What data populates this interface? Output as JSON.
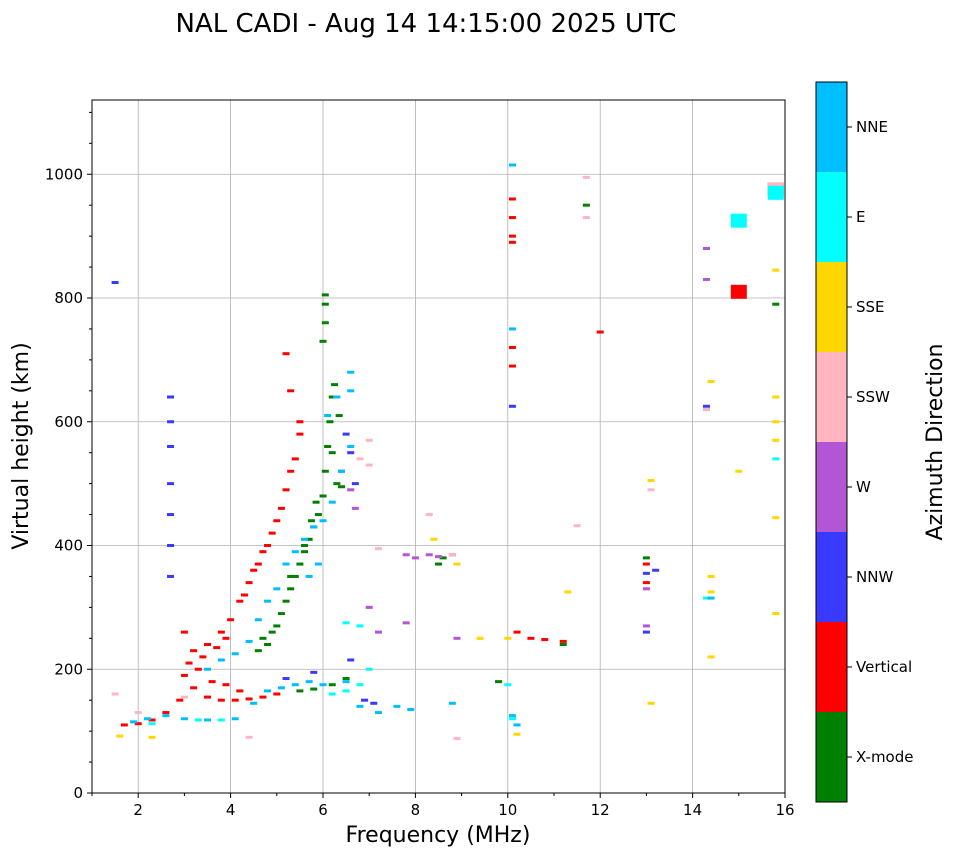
{
  "chart_data": {
    "type": "scatter",
    "title": "NAL CADI - Aug 14 14:15:00 2025 UTC",
    "xlabel": "Frequency (MHz)",
    "ylabel": "Virtual height (km)",
    "xlim": [
      1,
      16
    ],
    "ylim": [
      0,
      1120
    ],
    "xticks": [
      2,
      4,
      6,
      8,
      10,
      12,
      14,
      16
    ],
    "xtick_labels": [
      "2",
      "4",
      "6",
      "8",
      "10",
      "12",
      "14",
      "16"
    ],
    "yticks": [
      0,
      200,
      400,
      600,
      800,
      1000
    ],
    "ytick_labels": [
      "0",
      "200",
      "400",
      "600",
      "800",
      "1000"
    ],
    "grid": true,
    "colorbar": {
      "title": "Azimuth Direction",
      "categories": [
        "X-mode",
        "Vertical",
        "NNW",
        "W",
        "SSW",
        "SSE",
        "E",
        "NNE"
      ],
      "colors": [
        "#008000",
        "#ff0000",
        "#3a3aff",
        "#b256d6",
        "#ffb6c1",
        "#ffd700",
        "#00ffff",
        "#00bfff"
      ]
    },
    "series": [
      {
        "name": "X-mode",
        "points": [
          [
            5.0,
            270
          ],
          [
            5.1,
            290
          ],
          [
            5.2,
            310
          ],
          [
            5.3,
            330
          ],
          [
            5.4,
            350
          ],
          [
            5.5,
            370
          ],
          [
            5.6,
            390
          ],
          [
            5.7,
            410
          ],
          [
            5.8,
            430
          ],
          [
            5.9,
            450
          ],
          [
            6.0,
            480
          ],
          [
            6.05,
            520
          ],
          [
            6.1,
            560
          ],
          [
            6.15,
            600
          ],
          [
            6.2,
            640
          ],
          [
            6.25,
            660
          ],
          [
            6.0,
            730
          ],
          [
            6.05,
            760
          ],
          [
            6.05,
            790
          ],
          [
            6.05,
            805
          ],
          [
            4.9,
            260
          ],
          [
            4.8,
            240
          ],
          [
            5.5,
            165
          ],
          [
            5.8,
            168
          ],
          [
            6.2,
            175
          ],
          [
            6.5,
            185
          ],
          [
            11.2,
            240
          ],
          [
            11.7,
            950
          ],
          [
            13.0,
            380
          ],
          [
            15.8,
            790
          ],
          [
            4.6,
            230
          ],
          [
            4.7,
            250
          ],
          [
            5.3,
            350
          ],
          [
            5.6,
            400
          ],
          [
            5.75,
            440
          ],
          [
            5.85,
            470
          ],
          [
            6.3,
            500
          ],
          [
            6.4,
            495
          ],
          [
            8.5,
            370
          ],
          [
            8.6,
            380
          ],
          [
            9.8,
            180
          ],
          [
            6.2,
            550
          ],
          [
            6.35,
            610
          ]
        ]
      },
      {
        "name": "Vertical",
        "points": [
          [
            1.7,
            110
          ],
          [
            2.0,
            112
          ],
          [
            2.3,
            118
          ],
          [
            2.6,
            130
          ],
          [
            2.9,
            150
          ],
          [
            3.2,
            170
          ],
          [
            3.5,
            155
          ],
          [
            3.8,
            150
          ],
          [
            4.1,
            150
          ],
          [
            4.4,
            152
          ],
          [
            4.7,
            155
          ],
          [
            5.0,
            160
          ],
          [
            3.0,
            260
          ],
          [
            3.2,
            230
          ],
          [
            3.5,
            240
          ],
          [
            3.8,
            260
          ],
          [
            4.0,
            280
          ],
          [
            4.2,
            310
          ],
          [
            4.4,
            340
          ],
          [
            4.6,
            370
          ],
          [
            4.8,
            400
          ],
          [
            5.0,
            440
          ],
          [
            5.2,
            490
          ],
          [
            5.4,
            540
          ],
          [
            5.5,
            600
          ],
          [
            5.3,
            650
          ],
          [
            5.2,
            710
          ],
          [
            4.3,
            320
          ],
          [
            4.5,
            360
          ],
          [
            4.7,
            390
          ],
          [
            4.9,
            420
          ],
          [
            5.1,
            460
          ],
          [
            5.3,
            520
          ],
          [
            5.5,
            580
          ],
          [
            3.1,
            210
          ],
          [
            3.4,
            220
          ],
          [
            3.7,
            235
          ],
          [
            3.9,
            250
          ],
          [
            10.1,
            960
          ],
          [
            10.1,
            930
          ],
          [
            10.1,
            900
          ],
          [
            10.1,
            890
          ],
          [
            10.1,
            720
          ],
          [
            10.1,
            690
          ],
          [
            10.2,
            260
          ],
          [
            10.5,
            250
          ],
          [
            10.8,
            248
          ],
          [
            11.2,
            245
          ],
          [
            12.0,
            745
          ],
          [
            13.0,
            340
          ],
          [
            13.0,
            370
          ],
          [
            15.0,
            810
          ],
          [
            3.0,
            190
          ],
          [
            3.3,
            200
          ],
          [
            3.6,
            180
          ],
          [
            3.9,
            175
          ],
          [
            4.2,
            165
          ],
          [
            15.8,
            975
          ]
        ]
      },
      {
        "name": "NNW",
        "points": [
          [
            2.7,
            640
          ],
          [
            2.7,
            600
          ],
          [
            2.7,
            560
          ],
          [
            2.7,
            500
          ],
          [
            2.7,
            450
          ],
          [
            2.7,
            400
          ],
          [
            2.7,
            350
          ],
          [
            1.5,
            825
          ],
          [
            6.4,
            520
          ],
          [
            6.5,
            580
          ],
          [
            6.6,
            550
          ],
          [
            6.7,
            500
          ],
          [
            6.9,
            150
          ],
          [
            7.1,
            145
          ],
          [
            10.1,
            625
          ],
          [
            13.0,
            355
          ],
          [
            13.2,
            360
          ],
          [
            13.0,
            260
          ],
          [
            14.3,
            625
          ],
          [
            14.3,
            880
          ],
          [
            6.6,
            215
          ],
          [
            5.8,
            195
          ],
          [
            5.2,
            185
          ]
        ]
      },
      {
        "name": "W",
        "points": [
          [
            6.8,
            270
          ],
          [
            7.0,
            300
          ],
          [
            7.2,
            260
          ],
          [
            7.8,
            385
          ],
          [
            8.0,
            380
          ],
          [
            8.3,
            385
          ],
          [
            8.5,
            382
          ],
          [
            8.8,
            385
          ],
          [
            8.9,
            250
          ],
          [
            13.0,
            330
          ],
          [
            13.0,
            270
          ],
          [
            14.3,
            830
          ],
          [
            14.3,
            620
          ],
          [
            14.3,
            880
          ],
          [
            6.6,
            490
          ],
          [
            6.7,
            460
          ],
          [
            7.8,
            275
          ]
        ]
      },
      {
        "name": "SSW",
        "points": [
          [
            1.5,
            160
          ],
          [
            2.0,
            130
          ],
          [
            3.0,
            155
          ],
          [
            4.4,
            90
          ],
          [
            8.3,
            450
          ],
          [
            8.9,
            88
          ],
          [
            11.5,
            432
          ],
          [
            11.7,
            930
          ],
          [
            11.7,
            995
          ],
          [
            13.1,
            490
          ],
          [
            14.3,
            620
          ],
          [
            6.8,
            540
          ],
          [
            7.0,
            570
          ],
          [
            7.0,
            530
          ],
          [
            7.2,
            395
          ],
          [
            8.8,
            385
          ],
          [
            15.8,
            975
          ]
        ]
      },
      {
        "name": "SSE",
        "points": [
          [
            1.6,
            92
          ],
          [
            2.3,
            90
          ],
          [
            8.4,
            410
          ],
          [
            8.9,
            370
          ],
          [
            9.4,
            250
          ],
          [
            10.0,
            250
          ],
          [
            10.2,
            95
          ],
          [
            11.3,
            325
          ],
          [
            13.1,
            145
          ],
          [
            13.1,
            505
          ],
          [
            14.4,
            665
          ],
          [
            14.4,
            350
          ],
          [
            14.4,
            325
          ],
          [
            14.4,
            220
          ],
          [
            15.0,
            520
          ],
          [
            15.8,
            845
          ],
          [
            15.8,
            640
          ],
          [
            15.8,
            600
          ],
          [
            15.8,
            570
          ],
          [
            15.8,
            445
          ],
          [
            15.8,
            290
          ]
        ]
      },
      {
        "name": "E",
        "points": [
          [
            6.2,
            160
          ],
          [
            6.5,
            165
          ],
          [
            6.8,
            175
          ],
          [
            7.0,
            200
          ],
          [
            6.8,
            270
          ],
          [
            6.5,
            275
          ],
          [
            10.0,
            175
          ],
          [
            10.1,
            120
          ],
          [
            15.0,
            925
          ],
          [
            15.8,
            540
          ],
          [
            15.8,
            970
          ],
          [
            14.3,
            315
          ],
          [
            2.3,
            112
          ],
          [
            3.3,
            118
          ],
          [
            3.8,
            118
          ]
        ]
      },
      {
        "name": "NNE",
        "points": [
          [
            1.9,
            115
          ],
          [
            2.2,
            120
          ],
          [
            2.6,
            125
          ],
          [
            3.0,
            120
          ],
          [
            3.5,
            118
          ],
          [
            4.1,
            120
          ],
          [
            4.5,
            145
          ],
          [
            4.8,
            165
          ],
          [
            5.1,
            170
          ],
          [
            5.4,
            175
          ],
          [
            5.7,
            180
          ],
          [
            6.0,
            175
          ],
          [
            3.5,
            200
          ],
          [
            3.8,
            215
          ],
          [
            4.1,
            225
          ],
          [
            4.4,
            245
          ],
          [
            4.6,
            280
          ],
          [
            4.8,
            310
          ],
          [
            5.0,
            330
          ],
          [
            5.2,
            370
          ],
          [
            5.4,
            390
          ],
          [
            5.6,
            410
          ],
          [
            5.8,
            430
          ],
          [
            6.0,
            440
          ],
          [
            6.2,
            470
          ],
          [
            6.4,
            520
          ],
          [
            6.6,
            560
          ],
          [
            6.6,
            650
          ],
          [
            6.6,
            680
          ],
          [
            6.3,
            640
          ],
          [
            6.1,
            610
          ],
          [
            6.5,
            180
          ],
          [
            6.8,
            140
          ],
          [
            7.2,
            130
          ],
          [
            7.6,
            140
          ],
          [
            7.9,
            135
          ],
          [
            8.8,
            145
          ],
          [
            10.1,
            1015
          ],
          [
            10.1,
            750
          ],
          [
            10.1,
            125
          ],
          [
            10.2,
            110
          ],
          [
            14.4,
            315
          ],
          [
            5.9,
            370
          ],
          [
            5.7,
            350
          ]
        ]
      }
    ]
  }
}
